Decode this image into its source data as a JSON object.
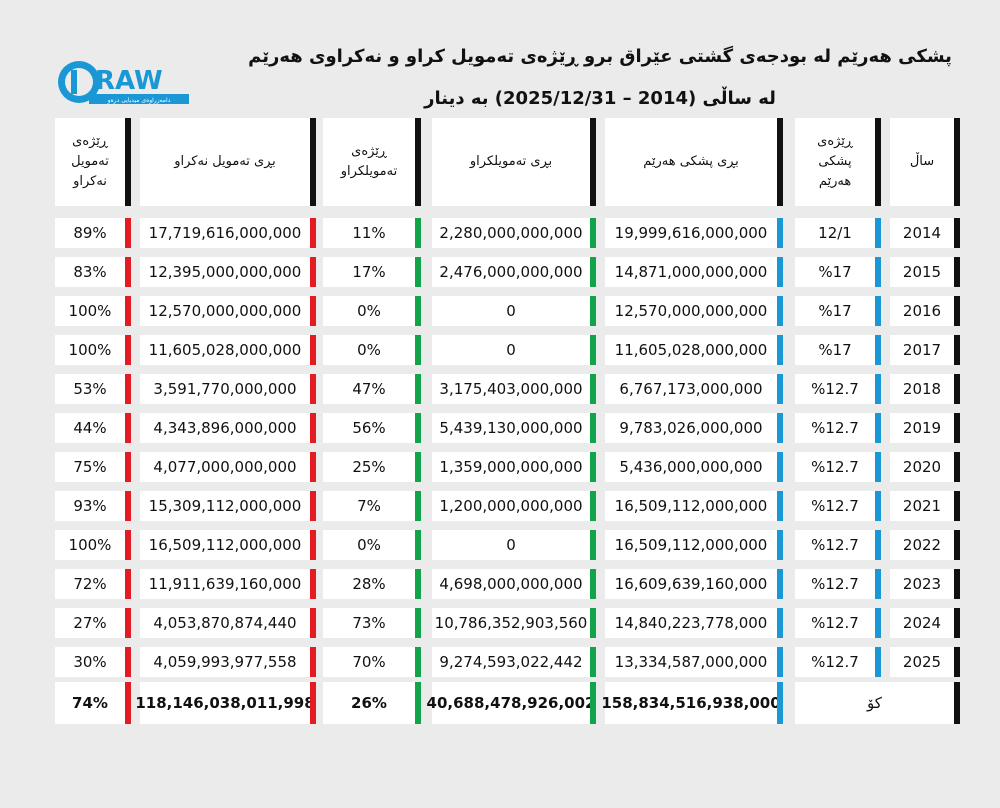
{
  "logo_text": "DRAW",
  "logo_subtitle": "دامەزراوەی میدیایی درەو",
  "title_line1": "پشکی هەرێم لە بودجەی گشتی عێراق  برو ڕێژەی تەمویل کراو و نەکراوی هەرێم",
  "title_line2": "لە ساڵی (2014 – 2025/12/31) بە دینار",
  "headers": {
    "year": "ساڵ",
    "share_pct": "ڕێژەی پشکی هەرێم",
    "share_amount": "بڕی پشکی هەرێم",
    "funded_amount": "بڕی تەمویلکراو",
    "funded_pct": "ڕێژەی تەمویلکراو",
    "unfunded_amount": "بڕی تەمویل نەکراو",
    "unfunded_pct": "ڕێژەی تەمویل نەکراو"
  },
  "rows": [
    {
      "year": "2014",
      "share_pct": "12/1",
      "share_amount": "19,999,616,000,000",
      "funded_amount": "2,280,000,000,000",
      "funded_pct": "11%",
      "unfunded_amount": "17,719,616,000,000",
      "unfunded_pct": "89%"
    },
    {
      "year": "2015",
      "share_pct": "%17",
      "share_amount": "14,871,000,000,000",
      "funded_amount": "2,476,000,000,000",
      "funded_pct": "17%",
      "unfunded_amount": "12,395,000,000,000",
      "unfunded_pct": "83%"
    },
    {
      "year": "2016",
      "share_pct": "%17",
      "share_amount": "12,570,000,000,000",
      "funded_amount": "0",
      "funded_pct": "0%",
      "unfunded_amount": "12,570,000,000,000",
      "unfunded_pct": "100%"
    },
    {
      "year": "2017",
      "share_pct": "%17",
      "share_amount": "11,605,028,000,000",
      "funded_amount": "0",
      "funded_pct": "0%",
      "unfunded_amount": "11,605,028,000,000",
      "unfunded_pct": "100%"
    },
    {
      "year": "2018",
      "share_pct": "%12.7",
      "share_amount": "6,767,173,000,000",
      "funded_amount": "3,175,403,000,000",
      "funded_pct": "47%",
      "unfunded_amount": "3,591,770,000,000",
      "unfunded_pct": "53%"
    },
    {
      "year": "2019",
      "share_pct": "%12.7",
      "share_amount": "9,783,026,000,000",
      "funded_amount": "5,439,130,000,000",
      "funded_pct": "56%",
      "unfunded_amount": "4,343,896,000,000",
      "unfunded_pct": "44%"
    },
    {
      "year": "2020",
      "share_pct": "%12.7",
      "share_amount": "5,436,000,000,000",
      "funded_amount": "1,359,000,000,000",
      "funded_pct": "25%",
      "unfunded_amount": "4,077,000,000,000",
      "unfunded_pct": "75%"
    },
    {
      "year": "2021",
      "share_pct": "%12.7",
      "share_amount": "16,509,112,000,000",
      "funded_amount": "1,200,000,000,000",
      "funded_pct": "7%",
      "unfunded_amount": "15,309,112,000,000",
      "unfunded_pct": "93%"
    },
    {
      "year": "2022",
      "share_pct": "%12.7",
      "share_amount": "16,509,112,000,000",
      "funded_amount": "0",
      "funded_pct": "0%",
      "unfunded_amount": "16,509,112,000,000",
      "unfunded_pct": "100%"
    },
    {
      "year": "2023",
      "share_pct": "%12.7",
      "share_amount": "16,609,639,160,000",
      "funded_amount": "4,698,000,000,000",
      "funded_pct": "28%",
      "unfunded_amount": "11,911,639,160,000",
      "unfunded_pct": "72%"
    },
    {
      "year": "2024",
      "share_pct": "%12.7",
      "share_amount": "14,840,223,778,000",
      "funded_amount": "10,786,352,903,560",
      "funded_pct": "73%",
      "unfunded_amount": "4,053,870,874,440",
      "unfunded_pct": "27%"
    },
    {
      "year": "2025",
      "share_pct": "%12.7",
      "share_amount": "13,334,587,000,000",
      "funded_amount": "9,274,593,022,442",
      "funded_pct": "70%",
      "unfunded_amount": "4,059,993,977,558",
      "unfunded_pct": "30%"
    }
  ],
  "total": {
    "label": "کۆ",
    "share_amount": "158,834,516,938,000",
    "funded_amount": "40,688,478,926,002",
    "funded_pct": "26%",
    "unfunded_amount": "118,146,038,011,998",
    "unfunded_pct": "74%"
  }
}
